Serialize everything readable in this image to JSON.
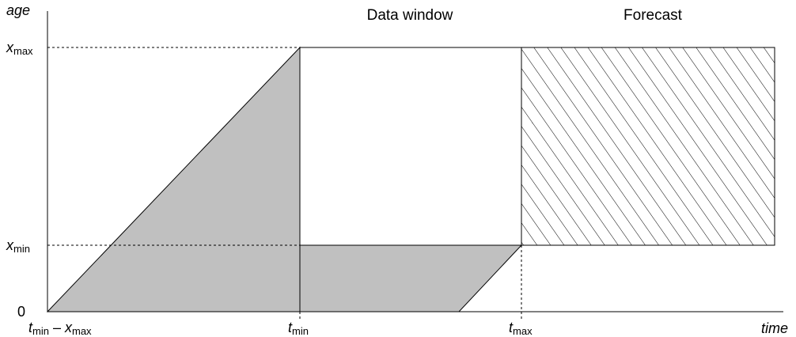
{
  "headers": {
    "data_window": "Data window",
    "forecast": "Forecast"
  },
  "axes": {
    "y_label": "age",
    "x_label": "time"
  },
  "y_ticks": {
    "x_max": {
      "var": "x",
      "sub": "max"
    },
    "x_min": {
      "var": "x",
      "sub": "min"
    },
    "zero": "0"
  },
  "x_ticks": {
    "t_min_minus_x_max": {
      "var1": "t",
      "sub1": "min",
      "op": " – ",
      "var2": "x",
      "sub2": "max"
    },
    "t_min": {
      "var": "t",
      "sub": "min"
    },
    "t_max": {
      "var": "t",
      "sub": "max"
    }
  },
  "colors": {
    "shaded_region": "#c0c0c0",
    "lines": "#000000",
    "hatch": "#000000"
  }
}
